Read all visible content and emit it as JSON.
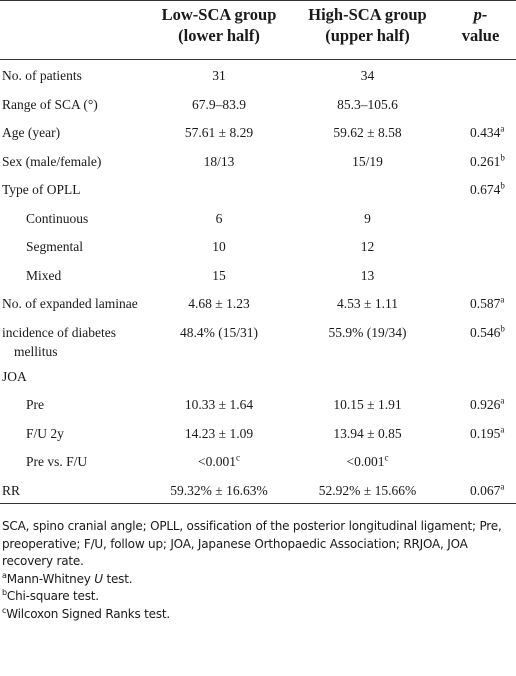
{
  "table": {
    "columns": [
      [
        "Low-SCA group",
        "(lower half)"
      ],
      [
        "High-SCA group",
        "(upper half)"
      ],
      [
        "p-",
        "value"
      ]
    ],
    "rows": [
      {
        "label": "No. of patients",
        "low": "31",
        "high": "34"
      },
      {
        "label": "Range of SCA (°)",
        "low": "67.9–83.9",
        "high": "85.3–105.6"
      },
      {
        "label": "Age (year)",
        "low": "57.61 ± 8.29",
        "high": "59.62 ± 8.58",
        "p": {
          "text": "0.434",
          "sup": "a"
        }
      },
      {
        "label": "Sex (male/female)",
        "low": "18/13",
        "high": "15/19",
        "p": {
          "text": "0.261",
          "sup": "b"
        }
      },
      {
        "label": "Type of OPLL",
        "p": {
          "text": "0.674",
          "sup": "b"
        }
      },
      {
        "label": "Continuous",
        "indent": true,
        "low": "6",
        "high": "9"
      },
      {
        "label": "Segmental",
        "indent": true,
        "low": "10",
        "high": "12"
      },
      {
        "label": "Mixed",
        "indent": true,
        "low": "15",
        "high": "13"
      },
      {
        "label": "No. of expanded laminae",
        "low": "4.68 ± 1.23",
        "high": "4.53 ± 1.11",
        "p": {
          "text": "0.587",
          "sup": "a"
        }
      },
      {
        "label": "incidence of diabetes mellitus",
        "low": "48.4% (15/31)",
        "high": "55.9% (19/34)",
        "p": {
          "text": "0.546",
          "sup": "b"
        }
      },
      {
        "label": "JOA"
      },
      {
        "label": "Pre",
        "indent": true,
        "low": "10.33 ± 1.64",
        "high": "10.15 ± 1.91",
        "p": {
          "text": "0.926",
          "sup": "a"
        }
      },
      {
        "label": "F/U 2y",
        "indent": true,
        "low": "14.23 ± 1.09",
        "high": "13.94 ± 0.85",
        "p": {
          "text": "0.195",
          "sup": "a"
        }
      },
      {
        "label": "Pre vs. F/U",
        "indent": true,
        "low": {
          "text": "<0.001",
          "sup": "c"
        },
        "high": {
          "text": "<0.001",
          "sup": "c"
        }
      },
      {
        "label": "RR",
        "low": "59.32% ± 16.63%",
        "high": "52.92% ± 15.66%",
        "p": {
          "text": "0.067",
          "sup": "a"
        }
      }
    ]
  },
  "notes": {
    "abbreviations": "SCA, spino cranial angle; OPLL, ossification of the posterior longitudinal ligament; Pre, preoperative; F/U, follow up; JOA, Japanese Orthopaedic Association; RRJOA, JOA recovery rate.",
    "marks": [
      {
        "sup": "a",
        "parts": [
          "Mann-Whitney ",
          "U",
          " test."
        ]
      },
      {
        "sup": "b",
        "parts": [
          "Chi-square test."
        ]
      },
      {
        "sup": "c",
        "parts": [
          "Wilcoxon Signed Ranks test."
        ]
      }
    ]
  }
}
